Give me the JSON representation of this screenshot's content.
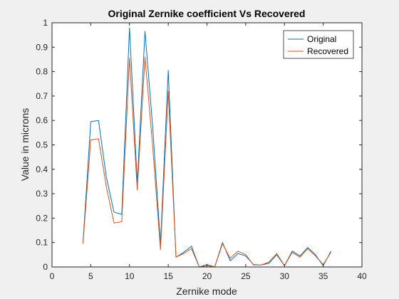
{
  "chart_data": {
    "type": "line",
    "title": "Original Zernike coefficient Vs Recovered",
    "xlabel": "Zernike mode",
    "ylabel": "Value in microns",
    "xlim": [
      0,
      40
    ],
    "ylim": [
      0,
      1
    ],
    "xticks": [
      0,
      5,
      10,
      15,
      20,
      25,
      30,
      35,
      40
    ],
    "yticks": [
      0,
      0.1,
      0.2,
      0.3,
      0.4,
      0.5,
      0.6,
      0.7,
      0.8,
      0.9,
      1
    ],
    "xtick_labels": [
      "0",
      "5",
      "10",
      "15",
      "20",
      "25",
      "30",
      "35",
      "40"
    ],
    "ytick_labels": [
      "0",
      "0.1",
      "0.2",
      "0.3",
      "0.4",
      "0.5",
      "0.6",
      "0.7",
      "0.8",
      "0.9",
      "1"
    ],
    "grid": false,
    "legend_position": "top-right",
    "x": [
      4,
      5,
      6,
      7,
      8,
      9,
      10,
      11,
      12,
      13,
      14,
      15,
      16,
      17,
      18,
      19,
      20,
      21,
      22,
      23,
      24,
      25,
      26,
      27,
      28,
      29,
      30,
      31,
      32,
      33,
      34,
      35,
      36
    ],
    "series": [
      {
        "name": "Original",
        "color": "#0072bd",
        "values": [
          0.1,
          0.595,
          0.6,
          0.37,
          0.225,
          0.215,
          0.98,
          0.345,
          0.965,
          0.57,
          0.095,
          0.805,
          0.04,
          0.06,
          0.085,
          0.0,
          0.01,
          0.0,
          0.1,
          0.025,
          0.055,
          0.045,
          0.01,
          0.008,
          0.015,
          0.05,
          0.005,
          0.065,
          0.045,
          0.08,
          0.05,
          0.005,
          0.065
        ]
      },
      {
        "name": "Recovered",
        "color": "#d95319",
        "values": [
          0.095,
          0.52,
          0.525,
          0.33,
          0.18,
          0.185,
          0.855,
          0.315,
          0.86,
          0.49,
          0.07,
          0.72,
          0.04,
          0.055,
          0.075,
          0.0,
          0.005,
          0.0,
          0.095,
          0.035,
          0.065,
          0.05,
          0.008,
          0.008,
          0.02,
          0.055,
          0.005,
          0.06,
          0.04,
          0.075,
          0.045,
          0.01,
          0.06
        ]
      }
    ]
  }
}
